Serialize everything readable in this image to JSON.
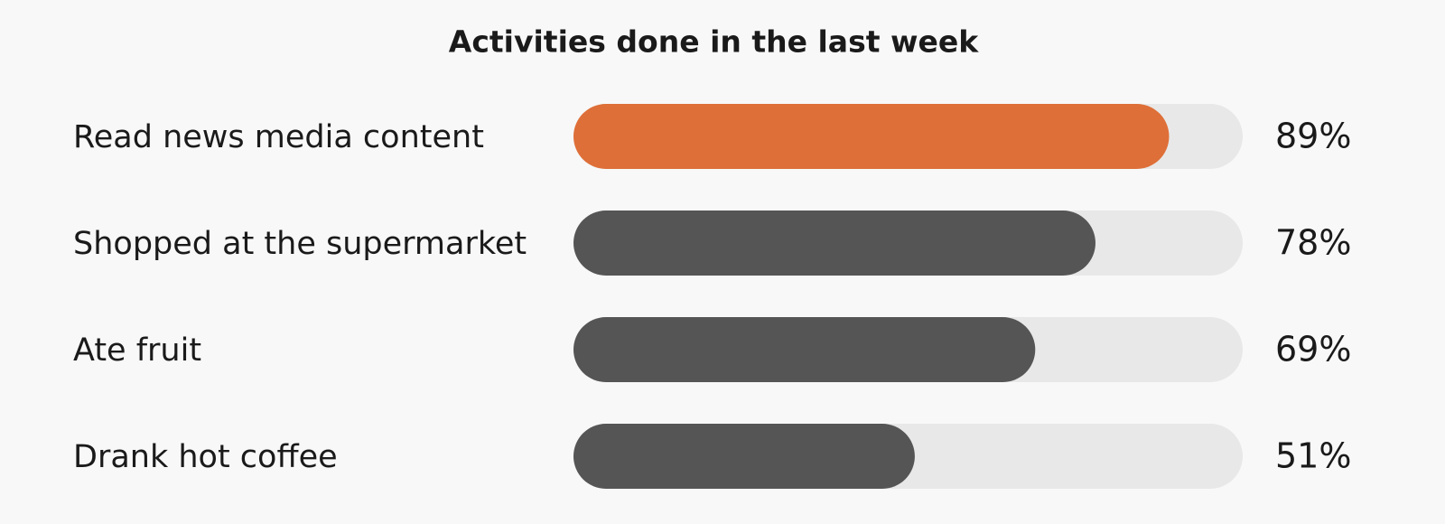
{
  "chart_data": {
    "type": "bar",
    "orientation": "horizontal",
    "title": "Activities done in the last week",
    "categories": [
      "Read news media content",
      "Shopped at the supermarket",
      "Ate fruit",
      "Drank hot coffee"
    ],
    "values": [
      89,
      78,
      69,
      51
    ],
    "value_labels": [
      "89%",
      "78%",
      "69%",
      "51%"
    ],
    "colors": [
      "#de6f38",
      "#555555",
      "#555555",
      "#555555"
    ],
    "track_color": "#e8e8e8",
    "xlim": [
      0,
      100
    ]
  }
}
